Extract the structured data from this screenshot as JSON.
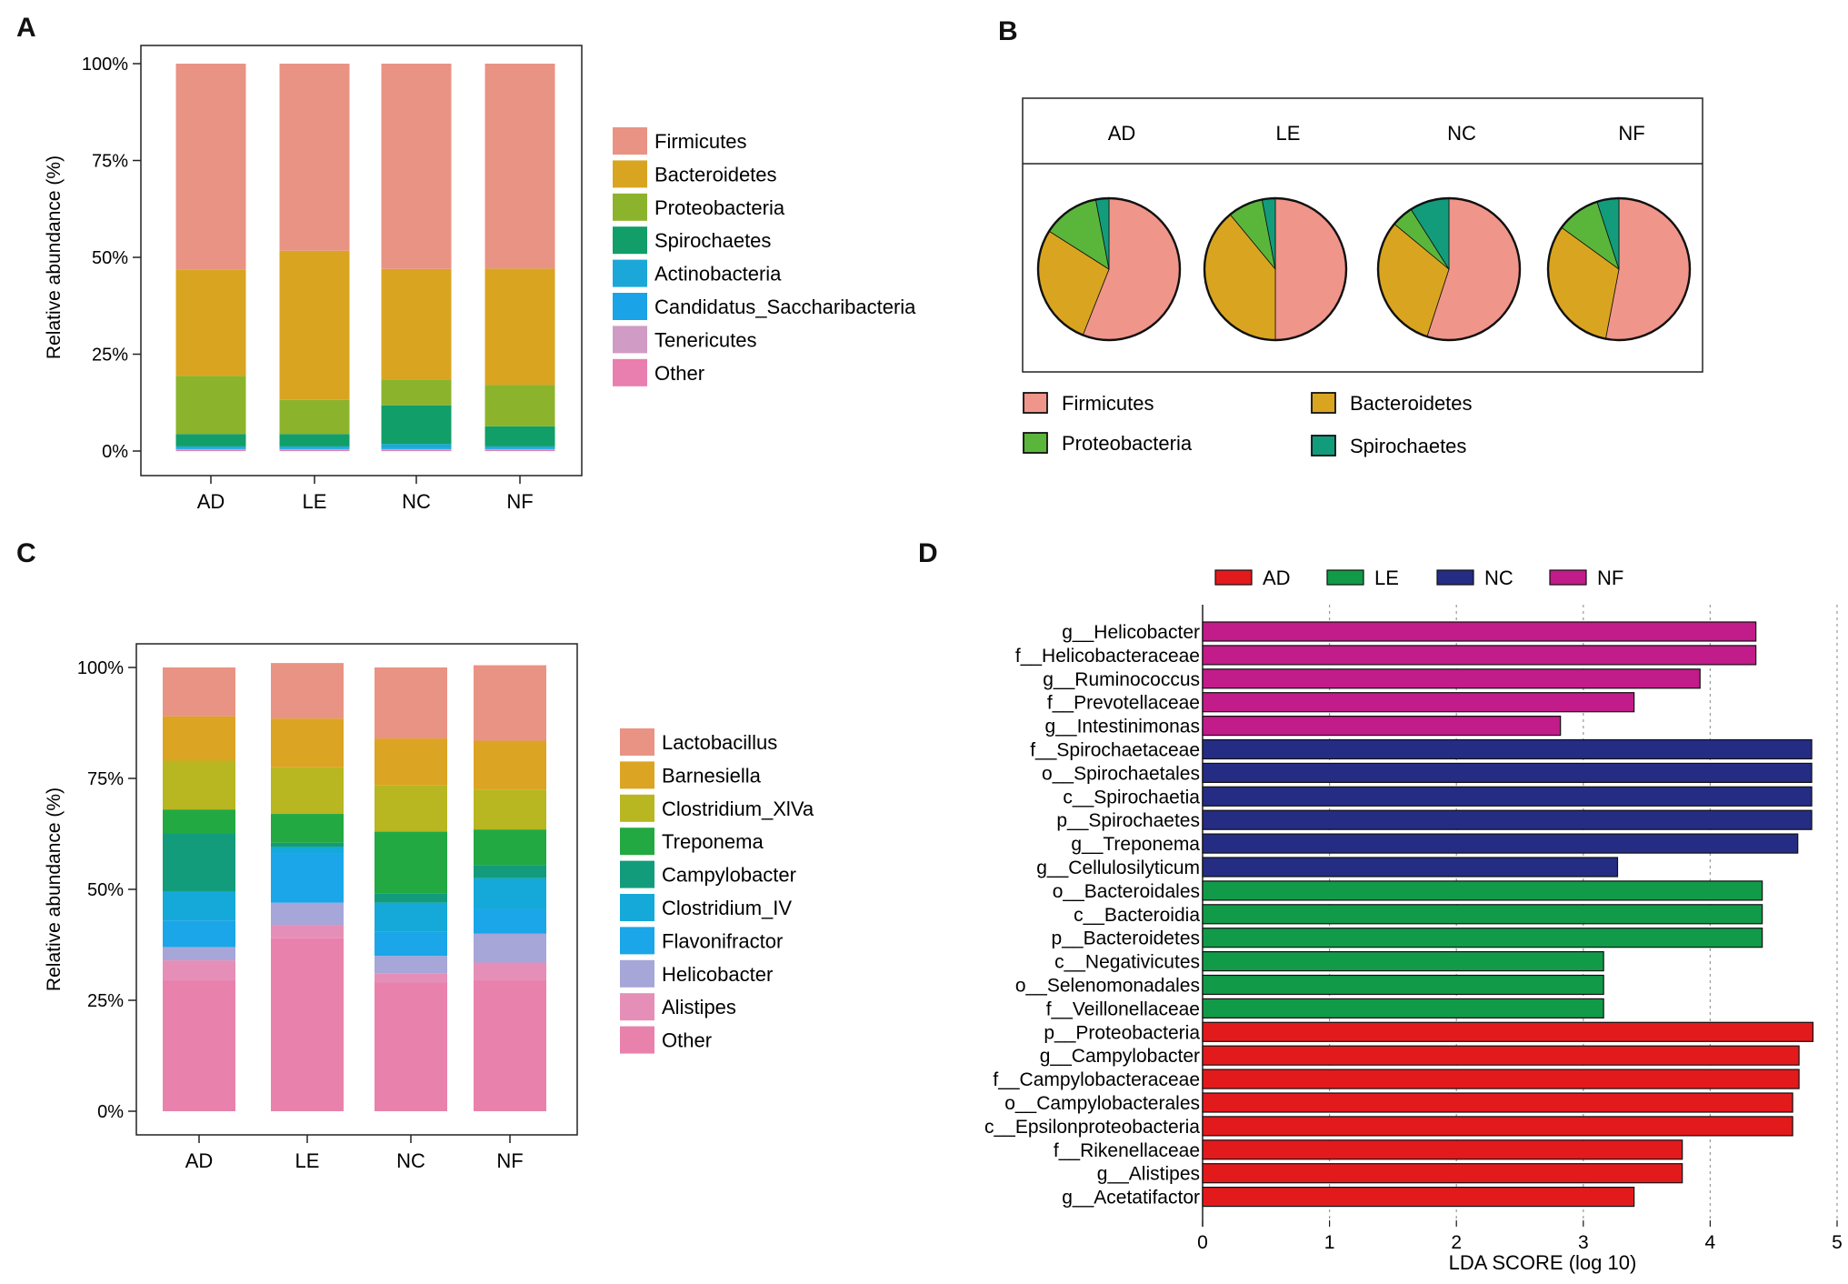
{
  "panels": {
    "a": "A",
    "b": "B",
    "c": "C",
    "d": "D"
  },
  "chart_data": [
    {
      "panel": "A",
      "type": "bar",
      "stacked": true,
      "ylabel": "Relative abundance (%)",
      "ytick_labels": [
        "0%",
        "25%",
        "50%",
        "75%",
        "100%"
      ],
      "ylim": [
        0,
        100
      ],
      "categories": [
        "AD",
        "LE",
        "NC",
        "NF"
      ],
      "series": [
        {
          "name": "Other",
          "color": "#E87FAE",
          "values": [
            0.3,
            0.3,
            0.3,
            0.3
          ]
        },
        {
          "name": "Tenericutes",
          "color": "#D09BC4",
          "values": [
            0.2,
            0.2,
            0.2,
            0.2
          ]
        },
        {
          "name": "Candidatus_Saccharibacteria",
          "color": "#1AA3E6",
          "values": [
            0.3,
            0.3,
            0.3,
            0.3
          ]
        },
        {
          "name": "Actinobacteria",
          "color": "#1BA8D8",
          "values": [
            0.4,
            0.4,
            1.0,
            0.4
          ]
        },
        {
          "name": "Spirochaetes",
          "color": "#119E68",
          "values": [
            3.2,
            3.2,
            10.0,
            5.2
          ]
        },
        {
          "name": "Proteobacteria",
          "color": "#8CB32C",
          "values": [
            15.0,
            8.8,
            6.7,
            10.7
          ]
        },
        {
          "name": "Bacteroidetes",
          "color": "#D9A521",
          "values": [
            27.5,
            38.5,
            28.5,
            30.0
          ]
        },
        {
          "name": "Firmicutes",
          "color": "#E99384",
          "values": [
            53.1,
            48.3,
            53.0,
            52.9
          ]
        }
      ],
      "legend": [
        "Firmicutes",
        "Bacteroidetes",
        "Proteobacteria",
        "Spirochaetes",
        "Actinobacteria",
        "Candidatus_Saccharibacteria",
        "Tenericutes",
        "Other"
      ],
      "legend_colors": [
        "#E99384",
        "#D9A521",
        "#8CB32C",
        "#119E68",
        "#1BA8D8",
        "#1AA3E6",
        "#D09BC4",
        "#E87FAE"
      ]
    },
    {
      "panel": "B",
      "type": "pie",
      "categories": [
        "AD",
        "LE",
        "NC",
        "NF"
      ],
      "slices": [
        "Firmicutes",
        "Bacteroidetes",
        "Proteobacteria",
        "Spirochaetes"
      ],
      "colors": [
        "#F0958A",
        "#D9A521",
        "#5AB63A",
        "#129C7C"
      ],
      "values": [
        [
          56,
          28,
          13,
          3
        ],
        [
          50,
          39,
          8,
          3
        ],
        [
          55,
          31,
          5,
          9
        ],
        [
          53,
          32,
          10,
          5
        ]
      ],
      "legend": [
        "Firmicutes",
        "Bacteroidetes",
        "Proteobacteria",
        "Spirochaetes"
      ],
      "legend_colors": [
        "#F0958A",
        "#D9A521",
        "#5AB63A",
        "#129C7C"
      ]
    },
    {
      "panel": "C",
      "type": "bar",
      "stacked": true,
      "ylabel": "Relative abundance (%)",
      "ytick_labels": [
        "0%",
        "25%",
        "50%",
        "75%",
        "100%"
      ],
      "ylim": [
        0,
        100
      ],
      "categories": [
        "AD",
        "LE",
        "NC",
        "NF"
      ],
      "series": [
        {
          "name": "Other",
          "color": "#E981AD",
          "values": [
            29.5,
            39.0,
            29.0,
            29.5
          ]
        },
        {
          "name": "Alistipes",
          "color": "#E58FB8",
          "values": [
            4.5,
            3.0,
            2.0,
            4.0
          ]
        },
        {
          "name": "Helicobacter",
          "color": "#A6A6D8",
          "values": [
            3.0,
            5.0,
            4.0,
            6.5
          ]
        },
        {
          "name": "Flavonifractor",
          "color": "#1AA6E8",
          "values": [
            6.0,
            11.0,
            5.5,
            5.5
          ]
        },
        {
          "name": "Clostridium_IV",
          "color": "#14A9D9",
          "values": [
            6.5,
            1.5,
            6.5,
            7.0
          ]
        },
        {
          "name": "Campylobacter",
          "color": "#129C7C",
          "values": [
            13.0,
            1.0,
            2.0,
            3.0
          ]
        },
        {
          "name": "Treponema",
          "color": "#22A942",
          "values": [
            5.5,
            6.5,
            14.0,
            8.0
          ]
        },
        {
          "name": "Clostridium_XlVa",
          "color": "#B8B621",
          "values": [
            11.0,
            10.5,
            10.5,
            9.0
          ]
        },
        {
          "name": "Barnesiella",
          "color": "#DCA423",
          "values": [
            10.0,
            11.0,
            10.5,
            11.0
          ]
        },
        {
          "name": "Lactobacillus",
          "color": "#E99384",
          "values": [
            11.0,
            12.5,
            16.0,
            17.0
          ]
        }
      ],
      "legend": [
        "Lactobacillus",
        "Barnesiella",
        "Clostridium_XlVa",
        "Treponema",
        "Campylobacter",
        "Clostridium_IV",
        "Flavonifractor",
        "Helicobacter",
        "Alistipes",
        "Other"
      ],
      "legend_colors": [
        "#E99384",
        "#DCA423",
        "#B8B621",
        "#22A942",
        "#129C7C",
        "#14A9D9",
        "#1AA6E8",
        "#A6A6D8",
        "#E58FB8",
        "#E981AD"
      ]
    },
    {
      "panel": "D",
      "type": "bar",
      "orientation": "horizontal",
      "xlabel": "LDA SCORE (log 10)",
      "xlim": [
        0,
        5
      ],
      "xticks": [
        0,
        1,
        2,
        3,
        4,
        5
      ],
      "groups": [
        "AD",
        "LE",
        "NC",
        "NF"
      ],
      "group_colors": {
        "AD": "#E31A1C",
        "LE": "#119A48",
        "NC": "#252C84",
        "NF": "#C21B8A"
      },
      "labels": [
        "g__Helicobacter",
        "f__Helicobacteraceae",
        "g__Ruminococcus",
        "f__Prevotellaceae",
        "g__Intestinimonas",
        "f__Spirochaetaceae",
        "o__Spirochaetales",
        "c__Spirochaetia",
        "p__Spirochaetes",
        "g__Treponema",
        "g__Cellulosilyticum",
        "o__Bacteroidales",
        "c__Bacteroidia",
        "p__Bacteroidetes",
        "c__Negativicutes",
        "o__Selenomonadales",
        "f__Veillonellaceae",
        "p__Proteobacteria",
        "g__Campylobacter",
        "f__Campylobacteraceae",
        "o__Campylobacterales",
        "c__Epsilonproteobacteria",
        "f__Rikenellaceae",
        "g__Alistipes",
        "g__Acetatifactor"
      ],
      "values": [
        4.36,
        4.36,
        3.92,
        3.4,
        2.82,
        4.8,
        4.8,
        4.8,
        4.8,
        4.69,
        3.27,
        4.41,
        4.41,
        4.41,
        3.16,
        3.16,
        3.16,
        4.81,
        4.7,
        4.7,
        4.65,
        4.65,
        3.78,
        3.78,
        3.4
      ],
      "group_of_bar": [
        "NF",
        "NF",
        "NF",
        "NF",
        "NF",
        "NC",
        "NC",
        "NC",
        "NC",
        "NC",
        "NC",
        "LE",
        "LE",
        "LE",
        "LE",
        "LE",
        "LE",
        "AD",
        "AD",
        "AD",
        "AD",
        "AD",
        "AD",
        "AD",
        "AD"
      ]
    }
  ]
}
